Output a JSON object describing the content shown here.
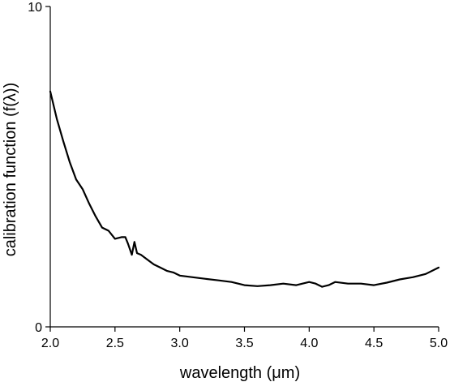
{
  "chart_data": {
    "type": "line",
    "xlabel": "wavelength (μm)",
    "ylabel": "calibration function (f(λ))",
    "xlim": [
      2.0,
      5.0
    ],
    "ylim": [
      0,
      10
    ],
    "xticks": [
      "2.0",
      "2.5",
      "3.0",
      "3.5",
      "4.0",
      "4.5",
      "5.0"
    ],
    "yticks": [
      "0",
      "10"
    ],
    "grid": false,
    "legend": "none",
    "line_color": "#000000",
    "series": [
      {
        "x": [
          2.0,
          2.05,
          2.1,
          2.15,
          2.2,
          2.25,
          2.3,
          2.35,
          2.4,
          2.45,
          2.5,
          2.55,
          2.58,
          2.6,
          2.63,
          2.65,
          2.67,
          2.7,
          2.75,
          2.8,
          2.85,
          2.9,
          2.95,
          3.0,
          3.1,
          3.2,
          3.3,
          3.4,
          3.5,
          3.6,
          3.7,
          3.8,
          3.9,
          4.0,
          4.05,
          4.1,
          4.15,
          4.2,
          4.3,
          4.4,
          4.5,
          4.6,
          4.7,
          4.8,
          4.9,
          5.0
        ],
        "y": [
          7.35,
          6.5,
          5.8,
          5.15,
          4.6,
          4.3,
          3.85,
          3.45,
          3.1,
          3.0,
          2.75,
          2.8,
          2.8,
          2.6,
          2.25,
          2.65,
          2.3,
          2.25,
          2.1,
          1.95,
          1.85,
          1.75,
          1.7,
          1.6,
          1.55,
          1.5,
          1.45,
          1.4,
          1.3,
          1.27,
          1.3,
          1.35,
          1.3,
          1.4,
          1.35,
          1.25,
          1.3,
          1.4,
          1.35,
          1.35,
          1.3,
          1.38,
          1.48,
          1.55,
          1.65,
          1.85
        ]
      }
    ]
  }
}
